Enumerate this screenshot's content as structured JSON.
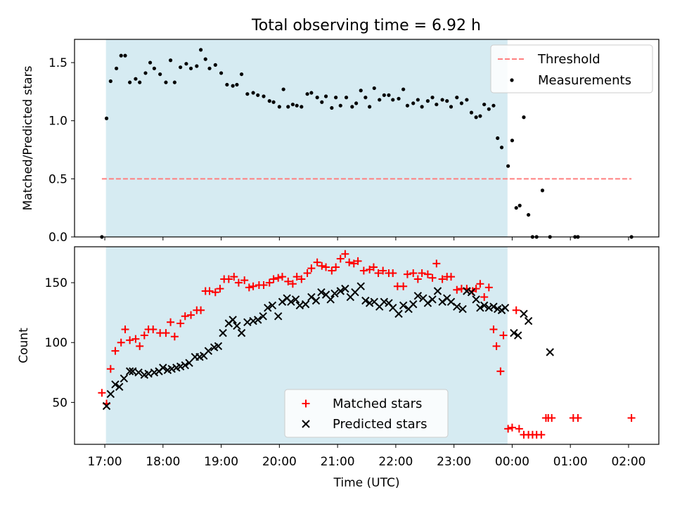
{
  "figure": {
    "title": "Total observing time = 6.92 h"
  },
  "colors": {
    "span": "#add8e6",
    "threshold": "#ff7f7f",
    "measurements": "#000000",
    "matched": "#ff0000",
    "predicted": "#000000"
  },
  "chart_data": [
    {
      "type": "scatter",
      "ylabel": "Matched/Predicted stars",
      "xlim": [
        -0.52,
        9.52
      ],
      "ylim": [
        0,
        1.7
      ],
      "yticks": [
        "0.0",
        "0.5",
        "1.0",
        "1.5"
      ],
      "ytick_values": [
        0,
        0.5,
        1.0,
        1.5
      ],
      "shaded_span": [
        0.02,
        6.92
      ],
      "legend_position": "upper-right",
      "threshold": {
        "name": "Threshold",
        "x": [
          -0.05,
          9.05
        ],
        "y": 0.5
      },
      "series": [
        {
          "name": "Measurements",
          "marker": "dot",
          "x": [
            -0.05,
            0.03,
            0.1,
            0.2,
            0.28,
            0.35,
            0.43,
            0.53,
            0.6,
            0.7,
            0.78,
            0.85,
            0.95,
            1.05,
            1.13,
            1.2,
            1.3,
            1.4,
            1.48,
            1.58,
            1.65,
            1.73,
            1.8,
            1.9,
            2.0,
            2.1,
            2.2,
            2.27,
            2.35,
            2.45,
            2.55,
            2.63,
            2.73,
            2.83,
            2.9,
            3.0,
            3.07,
            3.15,
            3.23,
            3.3,
            3.38,
            3.48,
            3.55,
            3.65,
            3.73,
            3.8,
            3.9,
            3.97,
            4.05,
            4.15,
            4.25,
            4.32,
            4.4,
            4.48,
            4.55,
            4.63,
            4.72,
            4.8,
            4.88,
            4.95,
            5.05,
            5.13,
            5.2,
            5.3,
            5.38,
            5.45,
            5.55,
            5.63,
            5.7,
            5.8,
            5.88,
            5.95,
            6.05,
            6.13,
            6.22,
            6.3,
            6.38,
            6.45,
            6.52,
            6.6,
            6.68,
            6.75,
            6.82,
            6.93,
            7.0,
            7.07,
            7.13,
            7.2,
            7.28,
            7.35,
            7.42,
            7.52,
            7.65,
            8.08,
            8.13,
            9.05
          ],
          "y": [
            0.0,
            1.02,
            1.34,
            1.45,
            1.56,
            1.56,
            1.33,
            1.36,
            1.33,
            1.41,
            1.5,
            1.45,
            1.4,
            1.33,
            1.52,
            1.33,
            1.46,
            1.49,
            1.45,
            1.47,
            1.61,
            1.53,
            1.45,
            1.48,
            1.41,
            1.31,
            1.3,
            1.31,
            1.4,
            1.23,
            1.24,
            1.22,
            1.21,
            1.17,
            1.16,
            1.12,
            1.27,
            1.12,
            1.14,
            1.13,
            1.12,
            1.23,
            1.24,
            1.2,
            1.16,
            1.21,
            1.11,
            1.2,
            1.13,
            1.2,
            1.12,
            1.15,
            1.26,
            1.2,
            1.12,
            1.28,
            1.18,
            1.22,
            1.22,
            1.18,
            1.19,
            1.27,
            1.13,
            1.15,
            1.18,
            1.12,
            1.17,
            1.2,
            1.14,
            1.18,
            1.17,
            1.12,
            1.2,
            1.15,
            1.18,
            1.07,
            1.03,
            1.04,
            1.14,
            1.1,
            1.13,
            0.85,
            0.77,
            0.61,
            0.83,
            0.25,
            0.27,
            1.03,
            0.19,
            0.0,
            0.0,
            0.4,
            0.0,
            0.0,
            0.0,
            0.0
          ]
        }
      ]
    },
    {
      "type": "scatter",
      "ylabel": "Count",
      "xlabel": "Time (UTC)",
      "xlim": [
        -0.52,
        9.52
      ],
      "ylim": [
        15,
        180
      ],
      "xticks": [
        "17:00",
        "18:00",
        "19:00",
        "20:00",
        "21:00",
        "22:00",
        "23:00",
        "00:00",
        "01:00",
        "02:00"
      ],
      "xtick_values": [
        0,
        1,
        2,
        3,
        4,
        5,
        6,
        7,
        8,
        9
      ],
      "yticks": [
        "50",
        "100",
        "150"
      ],
      "ytick_values": [
        50,
        100,
        150
      ],
      "shaded_span": [
        0.02,
        6.92
      ],
      "legend_position": "lower-center",
      "series": [
        {
          "name": "Matched stars",
          "marker": "plus",
          "x": [
            -0.05,
            0.03,
            0.1,
            0.18,
            0.28,
            0.35,
            0.43,
            0.53,
            0.6,
            0.68,
            0.75,
            0.83,
            0.95,
            1.05,
            1.13,
            1.2,
            1.3,
            1.38,
            1.48,
            1.58,
            1.65,
            1.73,
            1.8,
            1.9,
            1.98,
            2.05,
            2.13,
            2.22,
            2.3,
            2.4,
            2.48,
            2.55,
            2.65,
            2.73,
            2.83,
            2.9,
            2.98,
            3.05,
            3.15,
            3.23,
            3.3,
            3.38,
            3.48,
            3.55,
            3.65,
            3.73,
            3.8,
            3.9,
            3.97,
            4.05,
            4.13,
            4.2,
            4.28,
            4.35,
            4.45,
            4.55,
            4.62,
            4.7,
            4.78,
            4.88,
            4.95,
            5.03,
            5.13,
            5.2,
            5.3,
            5.38,
            5.45,
            5.55,
            5.63,
            5.7,
            5.8,
            5.88,
            5.95,
            6.05,
            6.13,
            6.22,
            6.32,
            6.38,
            6.45,
            6.52,
            6.6,
            6.68,
            6.73,
            6.8,
            6.85,
            6.93,
            7.0,
            7.07,
            7.12,
            7.2,
            7.28,
            7.35,
            7.42,
            7.5,
            7.58,
            7.62,
            7.68,
            8.05,
            8.13,
            9.05
          ],
          "y": [
            58,
            49,
            78,
            93,
            100,
            111,
            102,
            103,
            97,
            106,
            111,
            111,
            108,
            108,
            117,
            105,
            116,
            122,
            123,
            127,
            127,
            143,
            143,
            142,
            145,
            153,
            153,
            155,
            150,
            152,
            146,
            147,
            148,
            148,
            150,
            153,
            154,
            155,
            151,
            149,
            155,
            153,
            158,
            162,
            167,
            164,
            163,
            160,
            163,
            170,
            174,
            167,
            166,
            168,
            160,
            161,
            163,
            158,
            160,
            158,
            158,
            147,
            147,
            157,
            158,
            153,
            158,
            157,
            154,
            166,
            153,
            155,
            155,
            144,
            145,
            145,
            143,
            145,
            149,
            138,
            146,
            111,
            97,
            76,
            106,
            28,
            29,
            127,
            28,
            23,
            23,
            23,
            23,
            23,
            37,
            37,
            37,
            37,
            37,
            37
          ]
        },
        {
          "name": "Predicted stars",
          "marker": "x",
          "x": [
            0.03,
            0.1,
            0.18,
            0.25,
            0.33,
            0.43,
            0.48,
            0.58,
            0.68,
            0.75,
            0.85,
            0.93,
            1.0,
            1.08,
            1.15,
            1.23,
            1.3,
            1.38,
            1.45,
            1.55,
            1.63,
            1.7,
            1.78,
            1.88,
            1.95,
            2.03,
            2.13,
            2.2,
            2.27,
            2.35,
            2.45,
            2.55,
            2.63,
            2.72,
            2.8,
            2.88,
            2.98,
            3.05,
            3.13,
            3.2,
            3.28,
            3.35,
            3.45,
            3.55,
            3.63,
            3.72,
            3.8,
            3.88,
            3.95,
            4.05,
            4.13,
            4.22,
            4.3,
            4.4,
            4.48,
            4.55,
            4.63,
            4.72,
            4.8,
            4.88,
            4.95,
            5.05,
            5.13,
            5.22,
            5.3,
            5.38,
            5.47,
            5.55,
            5.63,
            5.72,
            5.8,
            5.88,
            5.95,
            6.05,
            6.15,
            6.22,
            6.3,
            6.38,
            6.45,
            6.52,
            6.6,
            6.68,
            6.75,
            6.82,
            6.88,
            7.03,
            7.1,
            7.2,
            7.28,
            7.65
          ],
          "y": [
            47,
            57,
            65,
            63,
            70,
            76,
            76,
            75,
            73,
            74,
            75,
            76,
            79,
            77,
            78,
            79,
            80,
            81,
            83,
            88,
            88,
            89,
            93,
            96,
            97,
            108,
            116,
            119,
            114,
            108,
            117,
            118,
            119,
            122,
            129,
            131,
            122,
            134,
            137,
            134,
            136,
            131,
            132,
            138,
            135,
            142,
            140,
            136,
            141,
            143,
            145,
            138,
            142,
            147,
            135,
            133,
            134,
            130,
            134,
            133,
            129,
            124,
            131,
            128,
            132,
            139,
            137,
            133,
            136,
            143,
            134,
            137,
            134,
            130,
            128,
            143,
            142,
            136,
            129,
            131,
            129,
            130,
            128,
            127,
            129,
            108,
            106,
            124,
            118,
            92
          ]
        }
      ]
    }
  ]
}
